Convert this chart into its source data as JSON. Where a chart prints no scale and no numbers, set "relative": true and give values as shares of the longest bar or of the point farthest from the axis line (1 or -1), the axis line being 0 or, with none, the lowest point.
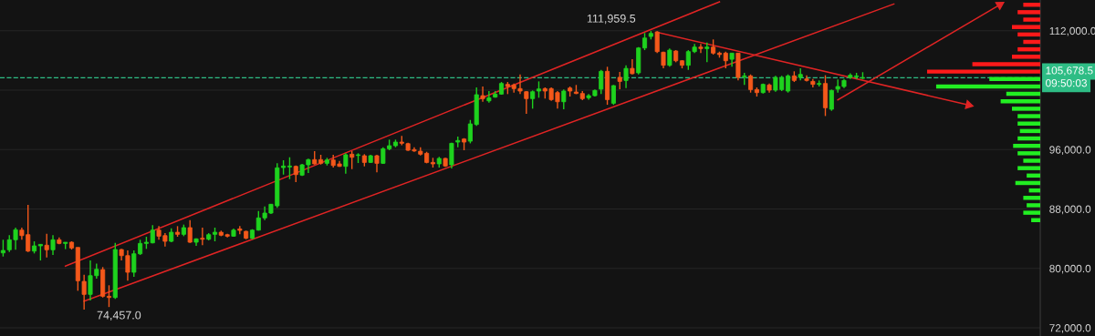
{
  "chart_data": [
    {
      "type": "candlestick",
      "categories": [
        null,
        null,
        null,
        null,
        null,
        null,
        null,
        null,
        null,
        null,
        null,
        null,
        null,
        null,
        null,
        null,
        null,
        null,
        null,
        null,
        null,
        null,
        null,
        null,
        null,
        null,
        null,
        null,
        null,
        null,
        null,
        null,
        null,
        null,
        null,
        null,
        null,
        null,
        null,
        null,
        null,
        null,
        null,
        null,
        null,
        null,
        null,
        null,
        null,
        null,
        null,
        null,
        null,
        null,
        null,
        null,
        null,
        null,
        null,
        null,
        null,
        null,
        null,
        null,
        null,
        null,
        null,
        null,
        null,
        null,
        null,
        null,
        null,
        null,
        null,
        null,
        null,
        null,
        null,
        null,
        null,
        null,
        null,
        null,
        null,
        null,
        null,
        null,
        null,
        null,
        null,
        null,
        null,
        null,
        null,
        null,
        null,
        null,
        null,
        null,
        null,
        null,
        null,
        null,
        null,
        null,
        null,
        null,
        null,
        null,
        null,
        null,
        null,
        null,
        null,
        null,
        null,
        null,
        null,
        null,
        null,
        null,
        null,
        null,
        null,
        null,
        null,
        null,
        null,
        null,
        null,
        null,
        null,
        null,
        null,
        null,
        null,
        null,
        null,
        null,
        null,
        null,
        null,
        null,
        null,
        null,
        null,
        null,
        null,
        null,
        null,
        null,
        null,
        null,
        null,
        null,
        null,
        null,
        null,
        null,
        null,
        null,
        null,
        null,
        null,
        null,
        null
      ],
      "ohlc": [
        [
          82090,
          83860,
          81600,
          82420
        ],
        [
          82507,
          84468,
          82212,
          83856
        ],
        [
          83856,
          85486,
          82507,
          85204
        ],
        [
          85155,
          85486,
          83856,
          84420
        ],
        [
          84542,
          88551,
          82212,
          82335
        ],
        [
          82335,
          83647,
          82017,
          83034
        ],
        [
          83034,
          83240,
          81070,
          83240
        ],
        [
          83120,
          84665,
          81477,
          82507
        ],
        [
          82507,
          84468,
          81808,
          83856
        ],
        [
          83856,
          84174,
          83240,
          83365
        ],
        [
          83365,
          83524,
          82600,
          83524
        ],
        [
          83524,
          83647,
          82540,
          82752
        ],
        [
          82825,
          82825,
          76990,
          78338
        ],
        [
          78250,
          79150,
          74457,
          76500
        ],
        [
          76500,
          81070,
          75680,
          79025
        ],
        [
          79025,
          80660,
          78620,
          79880
        ],
        [
          79840,
          80180,
          76080,
          76250
        ],
        [
          76250,
          77730,
          74800,
          76080
        ],
        [
          76080,
          83440,
          75890,
          82540
        ],
        [
          82540,
          82630,
          81070,
          81720
        ],
        [
          81720,
          82420,
          78340,
          79480
        ],
        [
          79480,
          82420,
          78870,
          81970
        ],
        [
          81970,
          83856,
          81810,
          83365
        ],
        [
          83365,
          84260,
          82630,
          83524
        ],
        [
          83440,
          85820,
          83365,
          85155
        ],
        [
          85155,
          85690,
          83856,
          84340
        ],
        [
          84420,
          84750,
          82950,
          83650
        ],
        [
          83650,
          85400,
          83525,
          84870
        ],
        [
          84870,
          85690,
          84260,
          84590
        ],
        [
          84590,
          85900,
          84340,
          85490
        ],
        [
          85490,
          86500,
          83440,
          83525
        ],
        [
          83525,
          84060,
          83030,
          83980
        ],
        [
          84060,
          85490,
          83120,
          83930
        ],
        [
          83930,
          84750,
          83770,
          84540
        ],
        [
          84590,
          85490,
          83650,
          84870
        ],
        [
          84870,
          85080,
          84340,
          84470
        ],
        [
          84540,
          84660,
          84170,
          84340
        ],
        [
          84340,
          85360,
          84260,
          85155
        ],
        [
          85320,
          85690,
          84590,
          85120
        ],
        [
          84990,
          85080,
          83930,
          84060
        ],
        [
          84060,
          85280,
          83930,
          85155
        ],
        [
          85155,
          87730,
          85080,
          86800
        ],
        [
          86800,
          88340,
          86500,
          87450
        ],
        [
          87450,
          88680,
          87330,
          88640
        ],
        [
          88428,
          94155,
          88146,
          93540
        ],
        [
          93577,
          94560,
          92630,
          93785
        ],
        [
          93660,
          94965,
          92020,
          93785
        ],
        [
          93740,
          93860,
          91620,
          92630
        ],
        [
          92560,
          94070,
          92440,
          93950
        ],
        [
          93950,
          94770,
          92840,
          94645
        ],
        [
          94645,
          95790,
          93980,
          94070
        ],
        [
          94645,
          95300,
          93980,
          94150
        ],
        [
          94150,
          94890,
          93860,
          94600
        ],
        [
          94600,
          95300,
          93580,
          93860
        ],
        [
          94070,
          94480,
          93660,
          93740
        ],
        [
          93740,
          95500,
          92760,
          95300
        ],
        [
          95380,
          95790,
          93370,
          94960
        ],
        [
          95210,
          95500,
          94190,
          95300
        ],
        [
          95170,
          95380,
          93740,
          94270
        ],
        [
          94270,
          95300,
          94190,
          95170
        ],
        [
          95170,
          95300,
          92930,
          94150
        ],
        [
          94150,
          96310,
          94070,
          96110
        ],
        [
          96110,
          97340,
          95910,
          96520
        ],
        [
          96520,
          97340,
          96310,
          97010
        ],
        [
          97010,
          97830,
          96600,
          96850
        ],
        [
          96800,
          96930,
          95820,
          95910
        ],
        [
          95990,
          96310,
          95700,
          95820
        ],
        [
          95780,
          96310,
          95210,
          95380
        ],
        [
          95500,
          95700,
          94150,
          94270
        ],
        [
          94270,
          94890,
          93580,
          94070
        ],
        [
          94070,
          95010,
          93580,
          94810
        ],
        [
          94810,
          94890,
          93660,
          93790
        ],
        [
          93950,
          96930,
          93460,
          96840
        ],
        [
          97010,
          97750,
          96310,
          97220
        ],
        [
          97420,
          97540,
          95910,
          97010
        ],
        [
          97130,
          99990,
          96840,
          99460
        ],
        [
          99380,
          104370,
          99180,
          103390
        ],
        [
          103260,
          104490,
          102440,
          102860
        ],
        [
          102560,
          103880,
          102320,
          102980
        ],
        [
          103060,
          103880,
          102980,
          103470
        ],
        [
          103470,
          105100,
          103390,
          104900
        ],
        [
          104780,
          105100,
          103470,
          104490
        ],
        [
          104700,
          104900,
          103670,
          104210
        ],
        [
          104210,
          106120,
          103470,
          103880
        ],
        [
          103790,
          103880,
          100810,
          102860
        ],
        [
          102860,
          103960,
          101510,
          103790
        ],
        [
          103880,
          105180,
          102980,
          104160
        ],
        [
          104210,
          104370,
          102860,
          103880
        ],
        [
          104210,
          104370,
          102560,
          102730
        ],
        [
          103670,
          103880,
          101510,
          102440
        ],
        [
          102440,
          104080,
          101430,
          103880
        ],
        [
          104280,
          104490,
          103140,
          103880
        ],
        [
          103750,
          104700,
          103470,
          103550
        ],
        [
          103550,
          103880,
          102650,
          102860
        ],
        [
          102980,
          103470,
          102730,
          103260
        ],
        [
          103260,
          104080,
          103140,
          103960
        ],
        [
          104140,
          106730,
          103470,
          106540
        ],
        [
          106540,
          107150,
          102030,
          102730
        ],
        [
          102240,
          104700,
          102030,
          104610
        ],
        [
          105720,
          106460,
          104140,
          105180
        ],
        [
          105300,
          107350,
          104280,
          106930
        ],
        [
          106930,
          108170,
          106120,
          106220
        ],
        [
          106330,
          109800,
          106120,
          109680
        ],
        [
          109680,
          111700,
          109390,
          111020
        ],
        [
          111230,
          111959.5,
          110830,
          111640
        ],
        [
          111840,
          111950,
          108990,
          109190
        ],
        [
          109110,
          109190,
          106940,
          107350
        ],
        [
          107350,
          109600,
          107150,
          109390
        ],
        [
          109270,
          109390,
          107760,
          107960
        ],
        [
          107960,
          108040,
          106940,
          107350
        ],
        [
          107350,
          109390,
          106730,
          109190
        ],
        [
          109190,
          110210,
          108990,
          109800
        ],
        [
          109800,
          110210,
          108990,
          109600
        ],
        [
          109600,
          110420,
          107760,
          109800
        ],
        [
          109800,
          110830,
          108790,
          108990
        ],
        [
          108990,
          109190,
          108380,
          108790
        ],
        [
          108990,
          109190,
          106940,
          107960
        ],
        [
          108160,
          108990,
          107150,
          108990
        ],
        [
          108990,
          108990,
          105310,
          105720
        ],
        [
          105800,
          106330,
          104700,
          105920
        ],
        [
          105920,
          106120,
          103670,
          104080
        ],
        [
          104080,
          104370,
          103140,
          103670
        ],
        [
          103670,
          104900,
          103550,
          104780
        ],
        [
          104700,
          104900,
          103670,
          104000
        ],
        [
          104000,
          105920,
          103790,
          105720
        ],
        [
          104080,
          105920,
          103880,
          105720
        ],
        [
          103880,
          106120,
          103670,
          105920
        ],
        [
          105920,
          106540,
          105100,
          105310
        ],
        [
          105720,
          106930,
          105310,
          106120
        ],
        [
          105510,
          106010,
          105180,
          105310
        ],
        [
          105180,
          105510,
          104370,
          104780
        ],
        [
          104780,
          105310,
          104490,
          104900
        ],
        [
          104900,
          106010,
          100520,
          101630
        ],
        [
          101430,
          104080,
          101220,
          103960
        ],
        [
          104140,
          105430,
          103670,
          104490
        ],
        [
          104490,
          105510,
          104280,
          105310
        ],
        [
          105720,
          106260,
          105510,
          106010
        ],
        [
          105800,
          106330,
          105510,
          105920
        ],
        [
          105600,
          106420,
          105510,
          105678.5
        ],
        null,
        null,
        null,
        null,
        null,
        null,
        null,
        null,
        null,
        null,
        null,
        null,
        null,
        null,
        null,
        null,
        null,
        null,
        null,
        null,
        null,
        null,
        null,
        null,
        null,
        null,
        null,
        null
      ],
      "colors": [
        "#1ed21e",
        "#1ed21e",
        "#1ed21e",
        "#f4581a",
        "#f4581a",
        "#1ed21e",
        "#1ed21e",
        "#f4581a",
        "#1ed21e",
        "#f4581a",
        "#1ed21e",
        "#f4581a",
        "#f4581a",
        "#f4581a",
        "#1ed21e",
        "#1ed21e",
        "#f4581a",
        "#f4581a",
        "#1ed21e",
        "#f4581a",
        "#f4581a",
        "#1ed21e",
        "#1ed21e",
        "#1ed21e",
        "#1ed21e",
        "#f4581a",
        "#f4581a",
        "#1ed21e",
        "#f4581a",
        "#1ed21e",
        "#f4581a",
        "#1ed21e",
        "#f4581a",
        "#1ed21e",
        "#1ed21e",
        "#f4581a",
        "#f4581a",
        "#1ed21e",
        "#f4581a",
        "#f4581a",
        "#1ed21e",
        "#1ed21e",
        "#1ed21e",
        "#1ed21e",
        "#1ed21e",
        "#1ed21e",
        "#1ed21e",
        "#f4581a",
        "#1ed21e",
        "#1ed21e",
        "#f4581a",
        "#f4581a",
        "#1ed21e",
        "#f4581a",
        "#f4581a",
        "#1ed21e",
        "#f4581a",
        "#1ed21e",
        "#f4581a",
        "#1ed21e",
        "#f4581a",
        "#1ed21e",
        "#1ed21e",
        "#1ed21e",
        "#f4581a",
        "#f4581a",
        "#f4581a",
        "#f4581a",
        "#f4581a",
        "#f4581a",
        "#1ed21e",
        "#f4581a",
        "#1ed21e",
        "#1ed21e",
        "#f4581a",
        "#1ed21e",
        "#1ed21e",
        "#f4581a",
        "#1ed21e",
        "#1ed21e",
        "#1ed21e",
        "#f4581a",
        "#f4581a",
        "#f4581a",
        "#f4581a",
        "#1ed21e",
        "#1ed21e",
        "#f4581a",
        "#f4581a",
        "#f4581a",
        "#1ed21e",
        "#f4581a",
        "#f4581a",
        "#f4581a",
        "#1ed21e",
        "#1ed21e",
        "#1ed21e",
        "#f4581a",
        "#1ed21e",
        "#f4581a",
        "#1ed21e",
        "#f4581a",
        "#1ed21e",
        "#1ed21e",
        "#1ed21e",
        "#f4581a",
        "#f4581a",
        "#1ed21e",
        "#f4581a",
        "#f4581a",
        "#1ed21e",
        "#1ed21e",
        "#f4581a",
        "#1ed21e",
        "#f4581a",
        "#f4581a",
        "#f4581a",
        "#1ed21e",
        "#f4581a",
        "#1ed21e",
        "#f4581a",
        "#f4581a",
        "#1ed21e",
        "#f4581a",
        "#1ed21e",
        "#1ed21e",
        "#1ed21e",
        "#f4581a",
        "#1ed21e",
        "#f4581a",
        "#f4581a",
        "#1ed21e",
        "#f4581a",
        "#1ed21e",
        "#1ed21e",
        "#1ed21e",
        "#1ed21e",
        "#1ed21e",
        "#1ed21e",
        null,
        null,
        null,
        null,
        null,
        null,
        null,
        null,
        null,
        null,
        null,
        null,
        null,
        null,
        null,
        null,
        null,
        null,
        null,
        null,
        null,
        null,
        null,
        null,
        null,
        null,
        null,
        null
      ],
      "series": [
        {
          "type": "line",
          "color": "#e02424",
          "values": [
            null,
            null,
            null,
            null,
            null,
            null,
            null,
            null,
            null,
            null,
            80300,
            null,
            null,
            null,
            null,
            null,
            null,
            null,
            null,
            null,
            null,
            null,
            null,
            null,
            null,
            null,
            null,
            null,
            null,
            null,
            null,
            null,
            null,
            null,
            null,
            null,
            null,
            null,
            null,
            null,
            null,
            null,
            null,
            null,
            null,
            null,
            null,
            null,
            null,
            null,
            null,
            null,
            null,
            null,
            null,
            null,
            null,
            null,
            null,
            null,
            null,
            null,
            null,
            null,
            null,
            null,
            null,
            null,
            null,
            null,
            null,
            null,
            null,
            null,
            null,
            null,
            null,
            null,
            null,
            null,
            null,
            null,
            null,
            null,
            null,
            null,
            null,
            null,
            null,
            null,
            null,
            null,
            null,
            null,
            null,
            null,
            null,
            null,
            null,
            null,
            null,
            null,
            null,
            null,
            null,
            null,
            null,
            null,
            null,
            null,
            null,
            null,
            null,
            null,
            null,
            115900,
            null,
            null,
            null,
            null,
            null,
            null,
            null,
            null,
            null,
            null,
            null,
            null,
            null,
            null,
            null,
            null,
            null,
            null,
            null,
            null,
            null,
            null,
            null,
            null,
            null,
            null,
            null,
            null,
            null,
            null,
            null,
            null,
            null,
            null,
            null,
            null,
            null,
            null,
            null,
            null,
            null,
            null,
            null,
            null,
            null,
            null,
            null,
            null,
            null,
            null,
            null
          ]
        },
        {
          "type": "line",
          "color": "#e02424",
          "values": [
            null,
            null,
            null,
            null,
            null,
            null,
            null,
            null,
            null,
            null,
            null,
            null,
            null,
            75600,
            null,
            null,
            null,
            null,
            null,
            null,
            null,
            null,
            null,
            null,
            null,
            null,
            null,
            null,
            null,
            null,
            null,
            null,
            null,
            null,
            null,
            null,
            null,
            null,
            null,
            null,
            null,
            null,
            null,
            null,
            null,
            null,
            null,
            null,
            null,
            null,
            null,
            null,
            null,
            null,
            null,
            null,
            null,
            null,
            null,
            null,
            null,
            null,
            null,
            null,
            null,
            null,
            null,
            null,
            null,
            null,
            null,
            null,
            null,
            null,
            null,
            null,
            null,
            null,
            null,
            null,
            null,
            null,
            null,
            null,
            null,
            null,
            null,
            null,
            null,
            null,
            null,
            null,
            null,
            null,
            null,
            null,
            null,
            null,
            null,
            null,
            null,
            null,
            null,
            null,
            null,
            null,
            null,
            null,
            null,
            null,
            null,
            null,
            null,
            null,
            null,
            null,
            null,
            null,
            null,
            null,
            null,
            null,
            null,
            null,
            null,
            null,
            null,
            null,
            null,
            null,
            null,
            null,
            null,
            null,
            null,
            null,
            null,
            null,
            null,
            null,
            null,
            null,
            null,
            115600,
            null,
            null,
            null,
            null,
            null,
            null,
            null,
            null,
            null,
            null,
            null,
            null,
            null,
            null,
            null,
            null,
            null,
            null,
            null,
            null,
            null,
            null,
            null
          ]
        },
        {
          "type": "line",
          "color": "#e02424",
          "marker": "triangle",
          "values": [
            null,
            null,
            null,
            null,
            null,
            null,
            null,
            null,
            null,
            null,
            null,
            null,
            null,
            null,
            null,
            null,
            null,
            null,
            null,
            null,
            null,
            null,
            null,
            null,
            null,
            null,
            null,
            null,
            null,
            null,
            null,
            null,
            null,
            null,
            null,
            null,
            null,
            null,
            null,
            null,
            null,
            null,
            null,
            null,
            null,
            null,
            null,
            null,
            null,
            null,
            null,
            null,
            null,
            null,
            null,
            null,
            null,
            null,
            null,
            null,
            null,
            null,
            null,
            null,
            null,
            null,
            null,
            null,
            null,
            null,
            null,
            null,
            null,
            null,
            null,
            null,
            null,
            null,
            null,
            null,
            null,
            null,
            null,
            null,
            null,
            null,
            null,
            null,
            null,
            null,
            null,
            null,
            null,
            null,
            null,
            null,
            null,
            null,
            null,
            null,
            null,
            null,
            null,
            null,
            null,
            111800,
            null,
            null,
            null,
            null,
            null,
            null,
            null,
            null,
            null,
            null,
            null,
            null,
            null,
            null,
            null,
            null,
            null,
            null,
            null,
            null,
            null,
            null,
            null,
            null,
            null,
            null,
            null,
            null,
            null,
            null,
            null,
            null,
            null,
            null,
            null,
            null,
            null,
            null,
            null,
            null,
            null,
            null,
            null,
            null,
            null,
            null,
            null,
            null,
            null,
            102000,
            null,
            null,
            null,
            null,
            null,
            null,
            null,
            null,
            null,
            null,
            null
          ]
        },
        {
          "type": "line",
          "color": "#e02424",
          "marker": "triangle",
          "values": [
            null,
            null,
            null,
            null,
            null,
            null,
            null,
            null,
            null,
            null,
            null,
            null,
            null,
            null,
            null,
            null,
            null,
            null,
            null,
            null,
            null,
            null,
            null,
            null,
            null,
            null,
            null,
            null,
            null,
            null,
            null,
            null,
            null,
            null,
            null,
            null,
            null,
            null,
            null,
            null,
            null,
            null,
            null,
            null,
            null,
            null,
            null,
            null,
            null,
            null,
            null,
            null,
            null,
            null,
            null,
            null,
            null,
            null,
            null,
            null,
            null,
            null,
            null,
            null,
            null,
            null,
            null,
            null,
            null,
            null,
            null,
            null,
            null,
            null,
            null,
            null,
            null,
            null,
            null,
            null,
            null,
            null,
            null,
            null,
            null,
            null,
            null,
            null,
            null,
            null,
            null,
            null,
            null,
            null,
            null,
            null,
            null,
            null,
            null,
            null,
            null,
            null,
            null,
            null,
            null,
            null,
            null,
            null,
            null,
            null,
            null,
            null,
            null,
            null,
            null,
            null,
            null,
            null,
            null,
            null,
            null,
            null,
            null,
            null,
            null,
            null,
            null,
            null,
            null,
            null,
            null,
            null,
            null,
            null,
            102700,
            null,
            null,
            null,
            null,
            null,
            null,
            null,
            null,
            null,
            null,
            null,
            null,
            null,
            null,
            null,
            null,
            null,
            null,
            null,
            null,
            null,
            null,
            null,
            null,
            null,
            115500,
            null,
            null,
            null,
            null,
            null,
            null
          ]
        }
      ],
      "ylim": [
        70900,
        116140
      ],
      "yticks": [
        {
          "value": 72000,
          "label": "72,000.0"
        },
        {
          "value": 80000,
          "label": "80,000.0"
        },
        {
          "value": 88000,
          "label": "88,000.0"
        },
        {
          "value": 96000,
          "label": "96,000.0"
        },
        {
          "value": 104000,
          "label": null
        },
        {
          "value": 112000,
          "label": "112,000.0"
        }
      ],
      "tick_labels": "y",
      "grid": "y",
      "ref_lines": [
        {
          "axis": "y",
          "value": 105678.5,
          "label": "105,678.5",
          "color": "#2ebd85",
          "line_style": "dashed"
        }
      ],
      "annotations": [
        "111,959.5",
        "74,457.0",
        "09:50:03"
      ]
    },
    {
      "type": "bar",
      "orientation": "horizontal",
      "relative": true,
      "tick_labels": false,
      "ylim": [
        70900,
        116140
      ],
      "x": [
        115500,
        114500,
        113500,
        112500,
        111500,
        110500,
        109500,
        108500,
        107500,
        106500,
        105500,
        104500,
        103500,
        102500,
        101500,
        100500,
        99500,
        98500,
        97500,
        96500,
        95500,
        94500,
        93500,
        92500,
        91500,
        90500,
        89500,
        88500,
        87500,
        86500
      ],
      "values": [
        0.15,
        0.2,
        0.15,
        0.25,
        0.2,
        0.15,
        0.2,
        0.25,
        0.6,
        1.0,
        0.45,
        0.92,
        0.3,
        0.35,
        0.25,
        0.2,
        0.2,
        0.18,
        0.2,
        0.24,
        0.2,
        0.15,
        0.2,
        0.12,
        0.22,
        0.1,
        0.15,
        0.12,
        0.15,
        0.08
      ],
      "colors": [
        "#ff1a1a",
        "#ff1a1a",
        "#ff1a1a",
        "#ff1a1a",
        "#ff1a1a",
        "#ff1a1a",
        "#ff1a1a",
        "#ff1a1a",
        "#ff1a1a",
        "#ff1a1a",
        "#22ee22",
        "#22ee22",
        "#22ee22",
        "#22ee22",
        "#22ee22",
        "#22ee22",
        "#22ee22",
        "#22ee22",
        "#22ee22",
        "#22ee22",
        "#22ee22",
        "#22ee22",
        "#22ee22",
        "#22ee22",
        "#22ee22",
        "#22ee22",
        "#22ee22",
        "#22ee22",
        "#22ee22",
        "#22ee22"
      ]
    }
  ]
}
